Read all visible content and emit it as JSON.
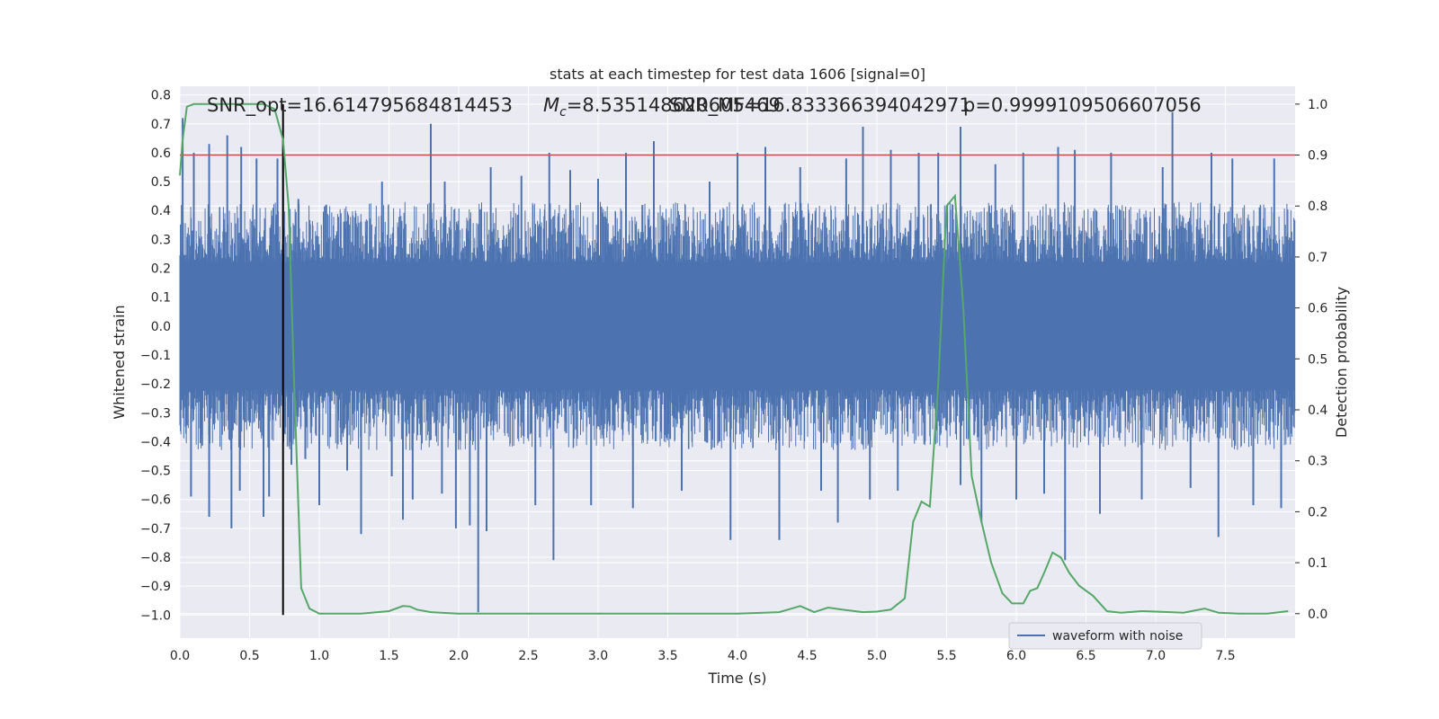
{
  "chart_data": {
    "type": "line",
    "title": "stats at each timestep for test data 1606 [signal=0]",
    "xlabel": "Time (s)",
    "ylabel_left": "Whitened strain",
    "ylabel_right": "Detection probability",
    "xlim": [
      0.0,
      8.0
    ],
    "ylim_left": [
      -1.08,
      0.83
    ],
    "ylim_right": [
      -0.048,
      1.035
    ],
    "x_ticks": [
      "0.0",
      "0.5",
      "1.0",
      "1.5",
      "2.0",
      "2.5",
      "3.0",
      "3.5",
      "4.0",
      "4.5",
      "5.0",
      "5.5",
      "6.0",
      "6.5",
      "7.0",
      "7.5"
    ],
    "y_left_ticks": [
      "0.8",
      "0.7",
      "0.6",
      "0.5",
      "0.4",
      "0.3",
      "0.2",
      "0.1",
      "0.0",
      "−0.1",
      "−0.2",
      "−0.3",
      "−0.4",
      "−0.5",
      "−0.6",
      "−0.7",
      "−0.8",
      "−0.9",
      "−1.0"
    ],
    "y_right_ticks": [
      "1.0",
      "0.9",
      "0.8",
      "0.7",
      "0.6",
      "0.5",
      "0.4",
      "0.3",
      "0.2",
      "0.1",
      "0.0"
    ],
    "grid": true,
    "annotations": {
      "snr_opt": "SNR_opt=16.614795684814453",
      "mc_symbol": "M",
      "mc_subscript": "c",
      "mc_value": "=8.535148620605469",
      "snr_mf": "SNR_MF=16.833366394042971",
      "p_value": "p=0.9999109506607056"
    },
    "threshold": {
      "name": "threshold",
      "value": 0.9,
      "color": "#c44e52"
    },
    "marker": {
      "name": "marker",
      "x": 0.74,
      "color": "#000000"
    },
    "series": [
      {
        "name": "waveform with noise",
        "axis": "left",
        "color": "#4c72b0",
        "core_band": [
          -0.22,
          0.22
        ],
        "typical_extent": [
          -0.42,
          0.42
        ],
        "spikes": [
          {
            "x": 0.02,
            "y": 0.72
          },
          {
            "x": 0.08,
            "y": -0.59
          },
          {
            "x": 0.1,
            "y": 0.6
          },
          {
            "x": 0.21,
            "y": -0.66
          },
          {
            "x": 0.21,
            "y": 0.63
          },
          {
            "x": 0.37,
            "y": -0.7
          },
          {
            "x": 0.34,
            "y": 0.66
          },
          {
            "x": 0.43,
            "y": -0.57
          },
          {
            "x": 0.44,
            "y": 0.62
          },
          {
            "x": 0.55,
            "y": 0.58
          },
          {
            "x": 0.6,
            "y": -0.66
          },
          {
            "x": 0.64,
            "y": -0.59
          },
          {
            "x": 0.7,
            "y": 0.58
          },
          {
            "x": 0.74,
            "y": 0.62
          },
          {
            "x": 0.8,
            "y": -0.48
          },
          {
            "x": 0.85,
            "y": 0.44
          },
          {
            "x": 0.9,
            "y": -0.46
          },
          {
            "x": 1.0,
            "y": -0.62
          },
          {
            "x": 1.05,
            "y": 0.42
          },
          {
            "x": 1.2,
            "y": -0.5
          },
          {
            "x": 1.3,
            "y": -0.72
          },
          {
            "x": 1.45,
            "y": 0.5
          },
          {
            "x": 1.52,
            "y": -0.52
          },
          {
            "x": 1.6,
            "y": -0.67
          },
          {
            "x": 1.67,
            "y": -0.6
          },
          {
            "x": 1.8,
            "y": 0.7
          },
          {
            "x": 1.88,
            "y": -0.58
          },
          {
            "x": 1.9,
            "y": 0.5
          },
          {
            "x": 1.98,
            "y": -0.7
          },
          {
            "x": 2.08,
            "y": -0.69
          },
          {
            "x": 2.14,
            "y": -0.99
          },
          {
            "x": 2.2,
            "y": -0.71
          },
          {
            "x": 2.23,
            "y": 0.55
          },
          {
            "x": 2.45,
            "y": 0.52
          },
          {
            "x": 2.55,
            "y": -0.62
          },
          {
            "x": 2.68,
            "y": -0.81
          },
          {
            "x": 2.65,
            "y": 0.6
          },
          {
            "x": 2.8,
            "y": 0.54
          },
          {
            "x": 2.95,
            "y": -0.62
          },
          {
            "x": 3.0,
            "y": 0.51
          },
          {
            "x": 3.2,
            "y": 0.6
          },
          {
            "x": 3.25,
            "y": -0.63
          },
          {
            "x": 3.4,
            "y": 0.64
          },
          {
            "x": 3.6,
            "y": -0.57
          },
          {
            "x": 3.8,
            "y": 0.5
          },
          {
            "x": 3.95,
            "y": -0.74
          },
          {
            "x": 4.0,
            "y": 0.6
          },
          {
            "x": 4.2,
            "y": 0.62
          },
          {
            "x": 4.3,
            "y": -0.74
          },
          {
            "x": 4.45,
            "y": 0.55
          },
          {
            "x": 4.6,
            "y": -0.57
          },
          {
            "x": 4.72,
            "y": -0.68
          },
          {
            "x": 4.78,
            "y": 0.58
          },
          {
            "x": 4.9,
            "y": 0.69
          },
          {
            "x": 4.95,
            "y": -0.6
          },
          {
            "x": 5.1,
            "y": 0.61
          },
          {
            "x": 5.15,
            "y": -0.57
          },
          {
            "x": 5.3,
            "y": 0.6
          },
          {
            "x": 5.44,
            "y": 0.6
          },
          {
            "x": 5.6,
            "y": 0.69
          },
          {
            "x": 5.6,
            "y": -0.55
          },
          {
            "x": 5.75,
            "y": -0.68
          },
          {
            "x": 5.85,
            "y": 0.56
          },
          {
            "x": 6.0,
            "y": -0.6
          },
          {
            "x": 6.05,
            "y": 0.6
          },
          {
            "x": 6.2,
            "y": -0.58
          },
          {
            "x": 6.3,
            "y": 0.62
          },
          {
            "x": 6.35,
            "y": -0.81
          },
          {
            "x": 6.42,
            "y": 0.61
          },
          {
            "x": 6.6,
            "y": -0.65
          },
          {
            "x": 6.68,
            "y": 0.6
          },
          {
            "x": 6.9,
            "y": -0.6
          },
          {
            "x": 7.05,
            "y": 0.55
          },
          {
            "x": 7.12,
            "y": 0.74
          },
          {
            "x": 7.25,
            "y": -0.56
          },
          {
            "x": 7.4,
            "y": 0.6
          },
          {
            "x": 7.45,
            "y": -0.73
          },
          {
            "x": 7.55,
            "y": 0.58
          },
          {
            "x": 7.7,
            "y": -0.62
          },
          {
            "x": 7.85,
            "y": 0.58
          },
          {
            "x": 7.9,
            "y": -0.63
          }
        ]
      },
      {
        "name": "detection probability",
        "axis": "right",
        "color": "#55a868",
        "x": [
          0.0,
          0.02,
          0.05,
          0.1,
          0.2,
          0.3,
          0.4,
          0.5,
          0.6,
          0.68,
          0.74,
          0.78,
          0.82,
          0.87,
          0.93,
          1.0,
          1.1,
          1.3,
          1.5,
          1.6,
          1.65,
          1.7,
          1.8,
          2.0,
          2.2,
          2.5,
          3.0,
          3.5,
          4.0,
          4.3,
          4.45,
          4.55,
          4.65,
          4.75,
          4.9,
          5.0,
          5.1,
          5.2,
          5.26,
          5.32,
          5.38,
          5.44,
          5.5,
          5.56,
          5.62,
          5.68,
          5.75,
          5.82,
          5.9,
          5.97,
          6.05,
          6.1,
          6.15,
          6.2,
          6.26,
          6.32,
          6.38,
          6.45,
          6.55,
          6.65,
          6.75,
          6.9,
          7.0,
          7.2,
          7.35,
          7.45,
          7.6,
          7.8,
          7.95
        ],
        "y": [
          0.86,
          0.93,
          0.995,
          1.0,
          1.0,
          1.0,
          1.0,
          1.0,
          1.0,
          0.99,
          0.93,
          0.8,
          0.45,
          0.05,
          0.01,
          0.0,
          0.0,
          0.0,
          0.005,
          0.015,
          0.014,
          0.008,
          0.003,
          0.0,
          0.0,
          0.0,
          0.0,
          0.0,
          0.0,
          0.003,
          0.015,
          0.003,
          0.012,
          0.008,
          0.003,
          0.004,
          0.008,
          0.03,
          0.18,
          0.22,
          0.21,
          0.45,
          0.8,
          0.82,
          0.6,
          0.27,
          0.18,
          0.1,
          0.04,
          0.02,
          0.02,
          0.045,
          0.05,
          0.08,
          0.12,
          0.11,
          0.08,
          0.055,
          0.035,
          0.005,
          0.002,
          0.005,
          0.004,
          0.002,
          0.01,
          0.002,
          0.0,
          0.0,
          0.005
        ]
      }
    ],
    "legend": {
      "position": "lower-right",
      "entries": [
        "waveform with noise"
      ]
    }
  }
}
